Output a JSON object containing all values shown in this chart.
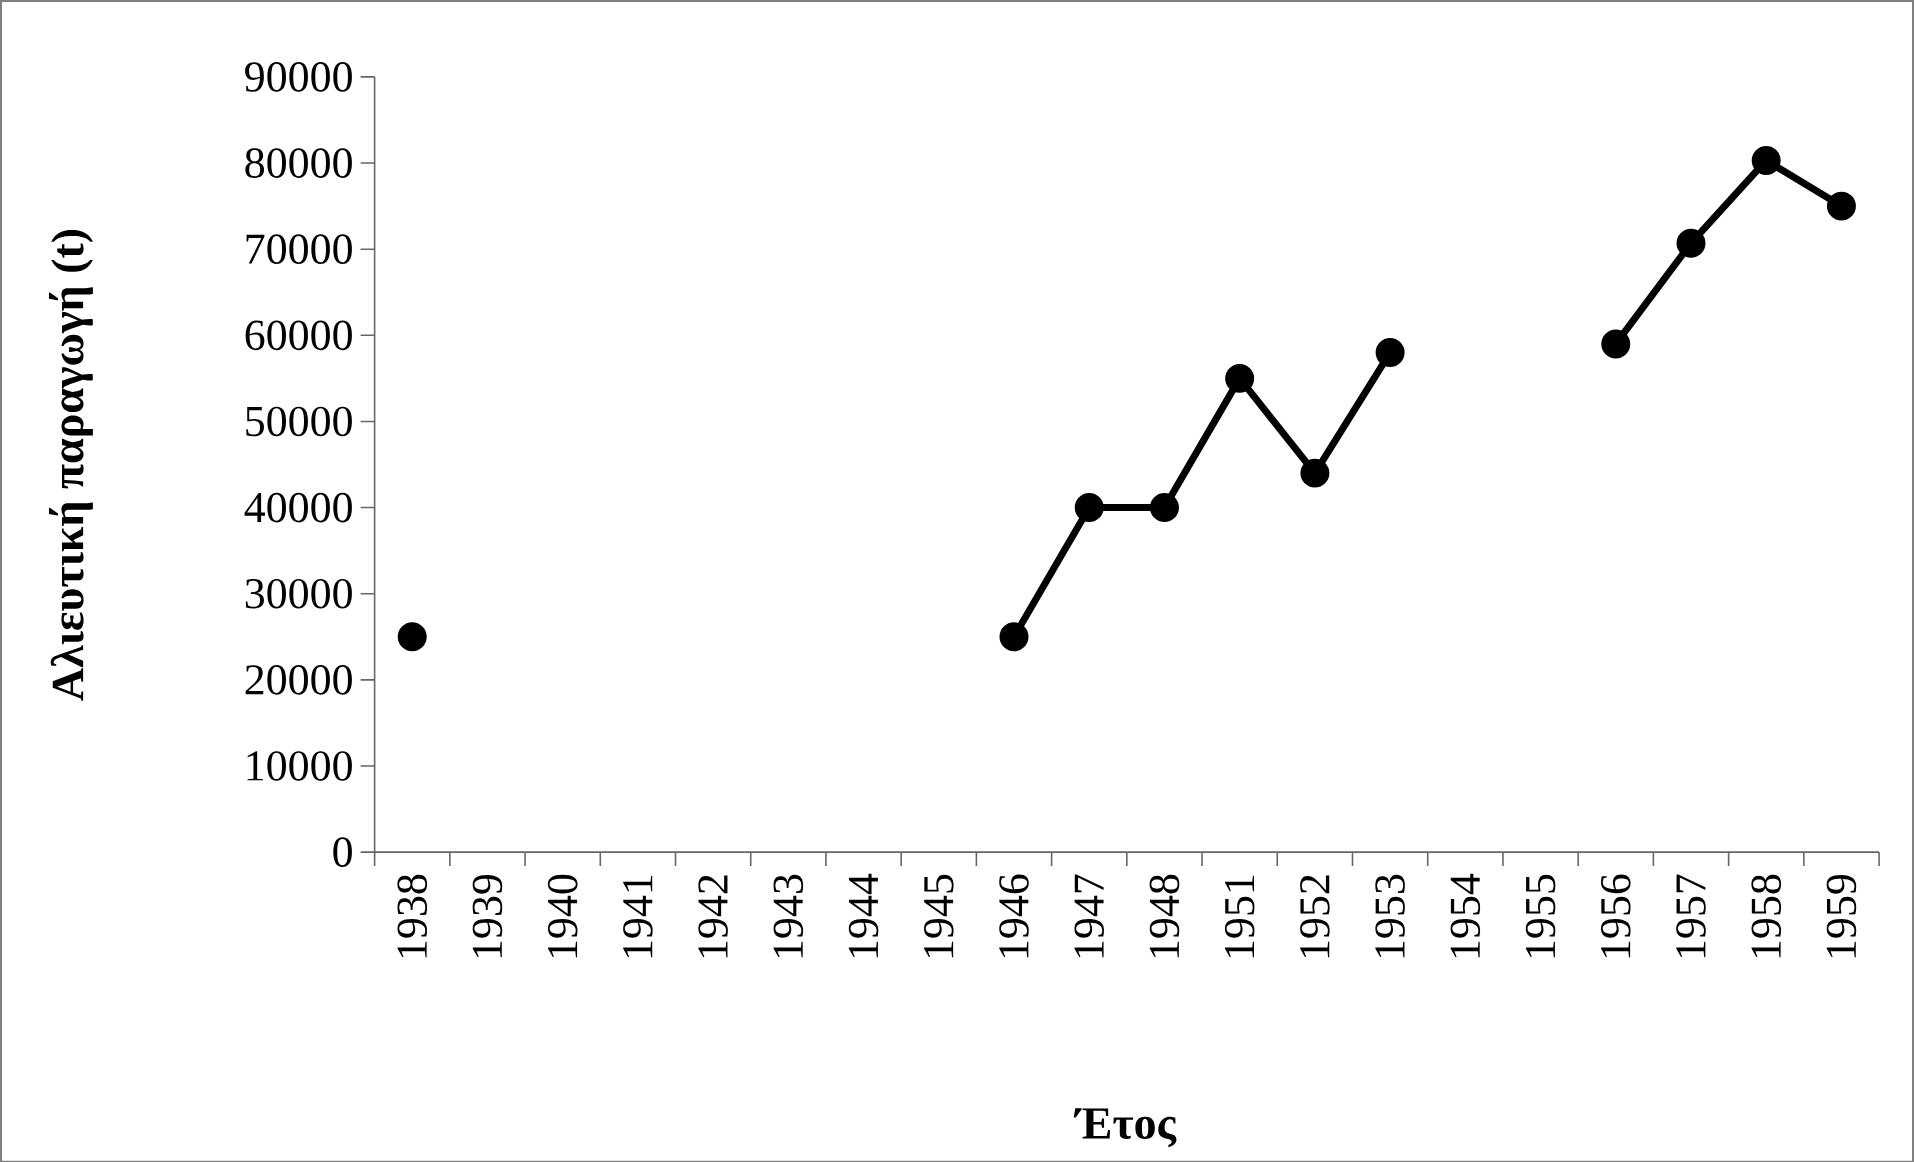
{
  "chart_data": {
    "type": "line",
    "xlabel": "Έτος",
    "ylabel": "Αλιευτική παραγωγή (t)",
    "categories": [
      "1938",
      "1939",
      "1940",
      "1941",
      "1942",
      "1943",
      "1944",
      "1945",
      "1946",
      "1947",
      "1948",
      "1951",
      "1952",
      "1953",
      "1954",
      "1955",
      "1956",
      "1957",
      "1958",
      "1959"
    ],
    "series": [
      {
        "color": "#000000",
        "values": [
          25000,
          null,
          null,
          null,
          null,
          null,
          null,
          null,
          25000,
          40000,
          40000,
          55000,
          44000,
          58000,
          null,
          null,
          59000,
          70700,
          80300,
          75000
        ]
      }
    ],
    "ylim": [
      0,
      90000
    ],
    "yticks": [
      0,
      10000,
      20000,
      30000,
      40000,
      50000,
      60000,
      70000,
      80000,
      90000
    ],
    "marker": "circle",
    "line_style": "solid",
    "grid": false
  }
}
